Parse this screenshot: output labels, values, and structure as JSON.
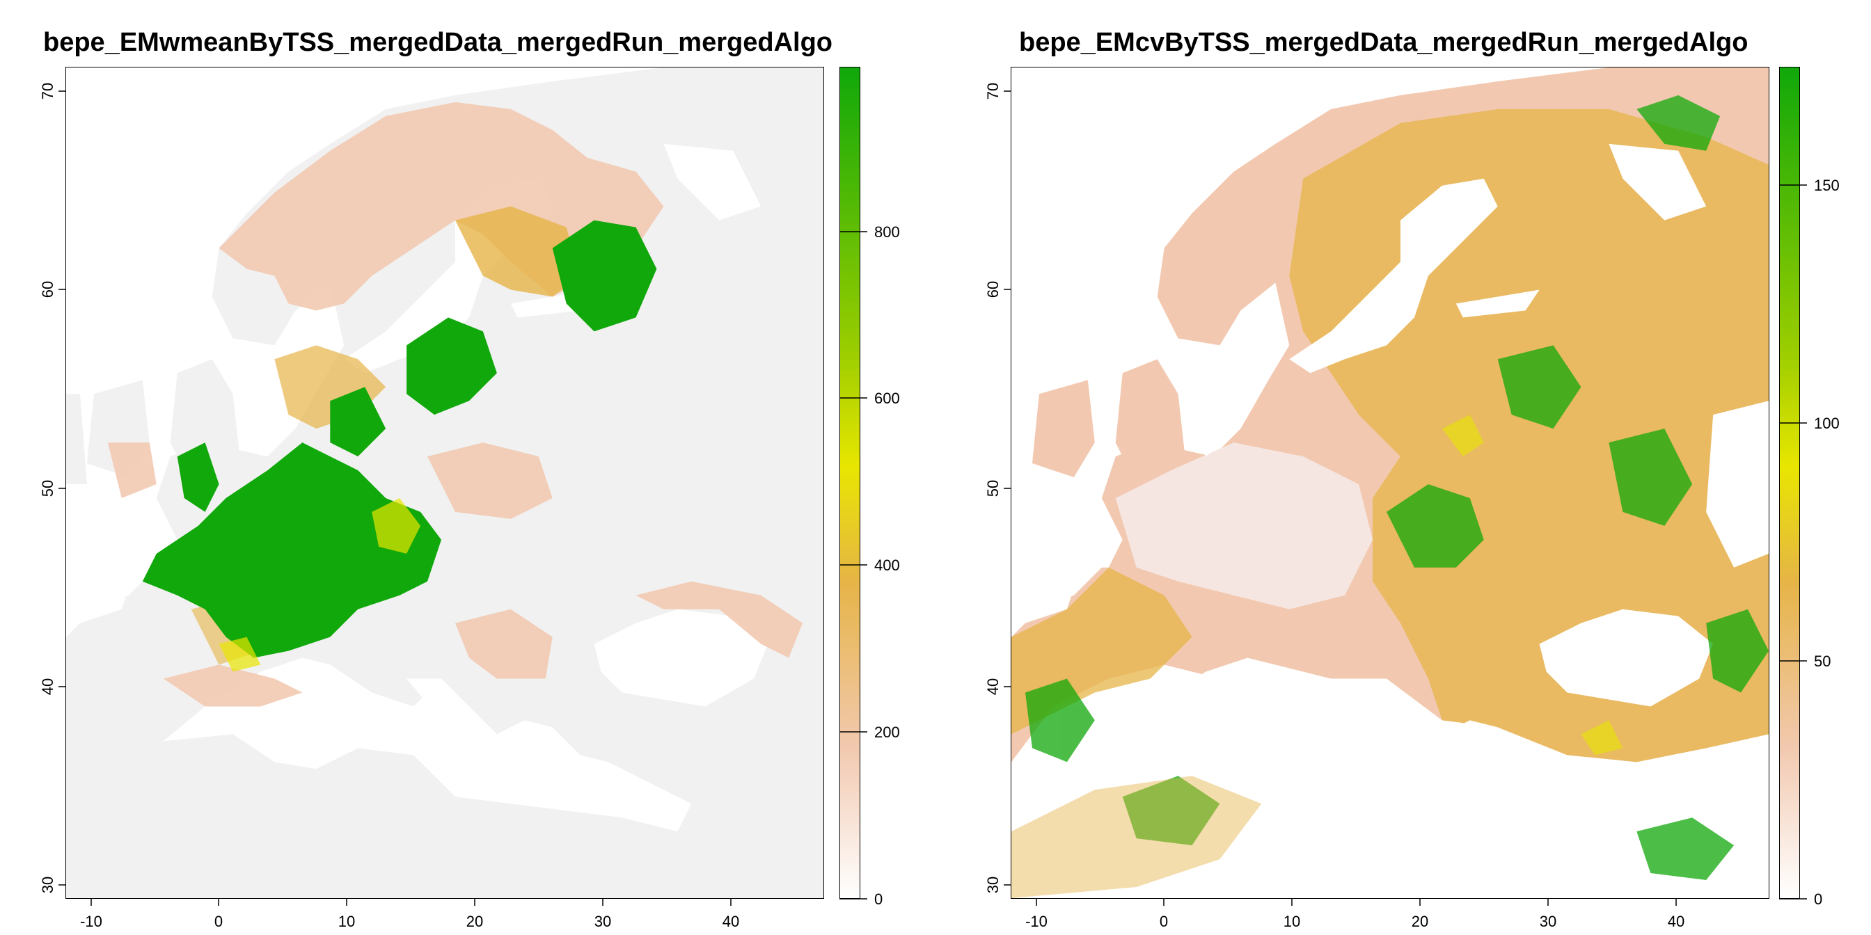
{
  "panels": [
    {
      "title": "bepe_EMwmeanByTSS_mergedData_mergedRun_mergedAlgo",
      "x_ticks": [
        "-10",
        "0",
        "10",
        "20",
        "30",
        "40"
      ],
      "y_ticks": [
        "30",
        "40",
        "50",
        "60",
        "70"
      ],
      "legend_ticks": [
        "0",
        "200",
        "400",
        "600",
        "800"
      ],
      "legend_range": [
        0,
        1000
      ]
    },
    {
      "title": "bepe_EMcvByTSS_mergedData_mergedRun_mergedAlgo",
      "x_ticks": [
        "-10",
        "0",
        "10",
        "20",
        "30",
        "40"
      ],
      "y_ticks": [
        "30",
        "40",
        "50",
        "60",
        "70"
      ],
      "legend_ticks": [
        "0",
        "50",
        "100",
        "150"
      ],
      "legend_range": [
        0,
        175
      ]
    }
  ],
  "map_extent": {
    "lon": [
      -11,
      47
    ],
    "lat": [
      29,
      71
    ]
  },
  "colors": {
    "land_low": "#f1f1f1",
    "low": "#f2c9b0",
    "mid": "#e6b447",
    "yellow": "#e8e600",
    "green": "#10a80a",
    "water": "#ffffff"
  }
}
